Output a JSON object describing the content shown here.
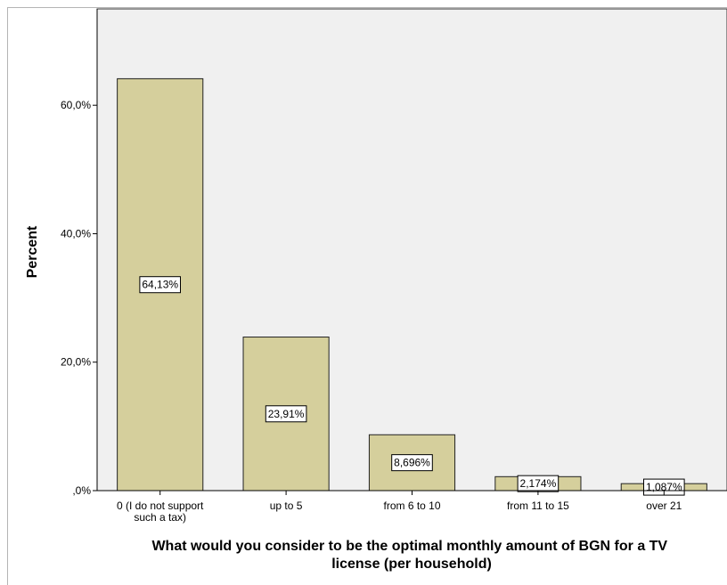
{
  "chart_data": {
    "type": "bar",
    "categories": [
      "0 (I do not support such a tax)",
      "up to 5",
      "from 6 to 10",
      "from 11 to 15",
      "over 21"
    ],
    "category_lines": [
      [
        "0 (I do not support",
        "such a tax)"
      ],
      [
        "up to 5"
      ],
      [
        "from 6 to 10"
      ],
      [
        "from 11 to 15"
      ],
      [
        "over 21"
      ]
    ],
    "values": [
      64.13,
      23.91,
      8.696,
      2.174,
      1.087
    ],
    "data_labels": [
      "64,13%",
      "23,91%",
      "8,696%",
      "2,174%",
      "1,087%"
    ],
    "ylim": [
      0,
      75
    ],
    "yticks": [
      0,
      20,
      40,
      60
    ],
    "ytick_labels": [
      ",0%",
      "20,0%",
      "40,0%",
      "60,0%"
    ],
    "ylabel": "Percent",
    "xlabel_lines": [
      "What would you consider to be the optimal monthly amount of BGN for a TV",
      "license (per household)"
    ],
    "grid": false,
    "legend": "none",
    "colors": {
      "bar_fill": "#d5cf9c",
      "bar_stroke": "#222222",
      "plot_bg": "#f0f0f0",
      "label_box": "#ffffff"
    }
  }
}
